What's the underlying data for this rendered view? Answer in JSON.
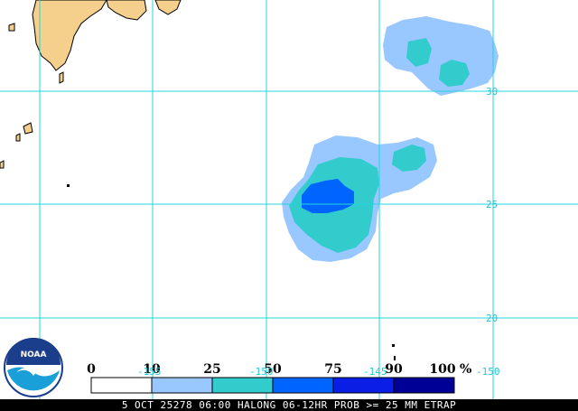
{
  "map": {
    "lat_labels": [
      "30",
      "25",
      "20"
    ],
    "lon_labels": [
      "-155",
      "-150",
      "-145",
      "-150"
    ]
  },
  "legend": {
    "ticks": [
      "0",
      "10",
      "25",
      "50",
      "75",
      "90",
      "100"
    ],
    "unit": "%",
    "colors": [
      "#ffffff",
      "#99c7ff",
      "#33cccc",
      "#0064ff",
      "#0a1ee6",
      "#000096"
    ]
  },
  "logo": {
    "text": "NOAA"
  },
  "caption": {
    "text": "5 OCT 25278 06:00 HALONG 06-12HR PROB >= 25 MM ETRAP"
  },
  "colors": {
    "grid": "#22d4dc",
    "land": "#f5d08c",
    "band_10": "#99c7ff",
    "band_25": "#33cccc",
    "band_50": "#0064ff",
    "band_75": "#0a1ee6",
    "band_90": "#000096"
  }
}
